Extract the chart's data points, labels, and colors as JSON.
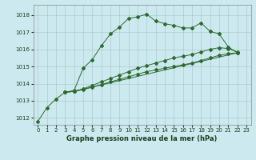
{
  "title": "Graphe pression niveau de la mer (hPa)",
  "bg_color": "#cce9f0",
  "grid_color": "#aacccc",
  "line_color": "#2d6a2d",
  "x_ticks": [
    0,
    1,
    2,
    3,
    4,
    5,
    6,
    7,
    8,
    9,
    10,
    11,
    12,
    13,
    14,
    15,
    16,
    17,
    18,
    19,
    20,
    21,
    22,
    23
  ],
  "y_ticks": [
    1012,
    1013,
    1014,
    1015,
    1016,
    1017,
    1018
  ],
  "ylim": [
    1011.6,
    1018.6
  ],
  "xlim": [
    -0.5,
    23.5
  ],
  "series": [
    {
      "x": [
        0,
        1,
        2,
        3,
        4,
        5,
        6,
        7,
        8,
        9,
        10,
        11,
        12,
        13,
        14,
        15,
        16,
        17,
        18,
        19,
        20,
        21,
        22
      ],
      "y": [
        1011.8,
        1012.6,
        1013.1,
        1013.5,
        1013.6,
        1014.9,
        1015.4,
        1016.2,
        1016.9,
        1017.3,
        1017.8,
        1017.9,
        1018.05,
        1017.65,
        1017.5,
        1017.4,
        1017.25,
        1017.25,
        1017.55,
        1017.05,
        1016.9,
        1016.15,
        1015.8
      ]
    },
    {
      "x": [
        3,
        4,
        5,
        6,
        7,
        8,
        9,
        10,
        11,
        12,
        13,
        14,
        15,
        16,
        17,
        18,
        19,
        20,
        21,
        22
      ],
      "y": [
        1013.5,
        1013.55,
        1013.65,
        1013.8,
        1013.95,
        1014.1,
        1014.25,
        1014.4,
        1014.55,
        1014.7,
        1014.8,
        1014.9,
        1015.0,
        1015.1,
        1015.2,
        1015.35,
        1015.5,
        1015.65,
        1015.75,
        1015.8
      ]
    },
    {
      "x": [
        3,
        4,
        5,
        6,
        7,
        8,
        9,
        10,
        11,
        12,
        13,
        14,
        15,
        16,
        17,
        18,
        19,
        20,
        21,
        22
      ],
      "y": [
        1013.5,
        1013.55,
        1013.7,
        1013.9,
        1014.1,
        1014.3,
        1014.5,
        1014.7,
        1014.9,
        1015.05,
        1015.2,
        1015.35,
        1015.5,
        1015.6,
        1015.7,
        1015.85,
        1016.0,
        1016.1,
        1016.05,
        1015.85
      ]
    },
    {
      "x": [
        3,
        4,
        22
      ],
      "y": [
        1013.5,
        1013.55,
        1015.8
      ]
    }
  ],
  "title_fontsize": 6,
  "tick_fontsize": 5
}
